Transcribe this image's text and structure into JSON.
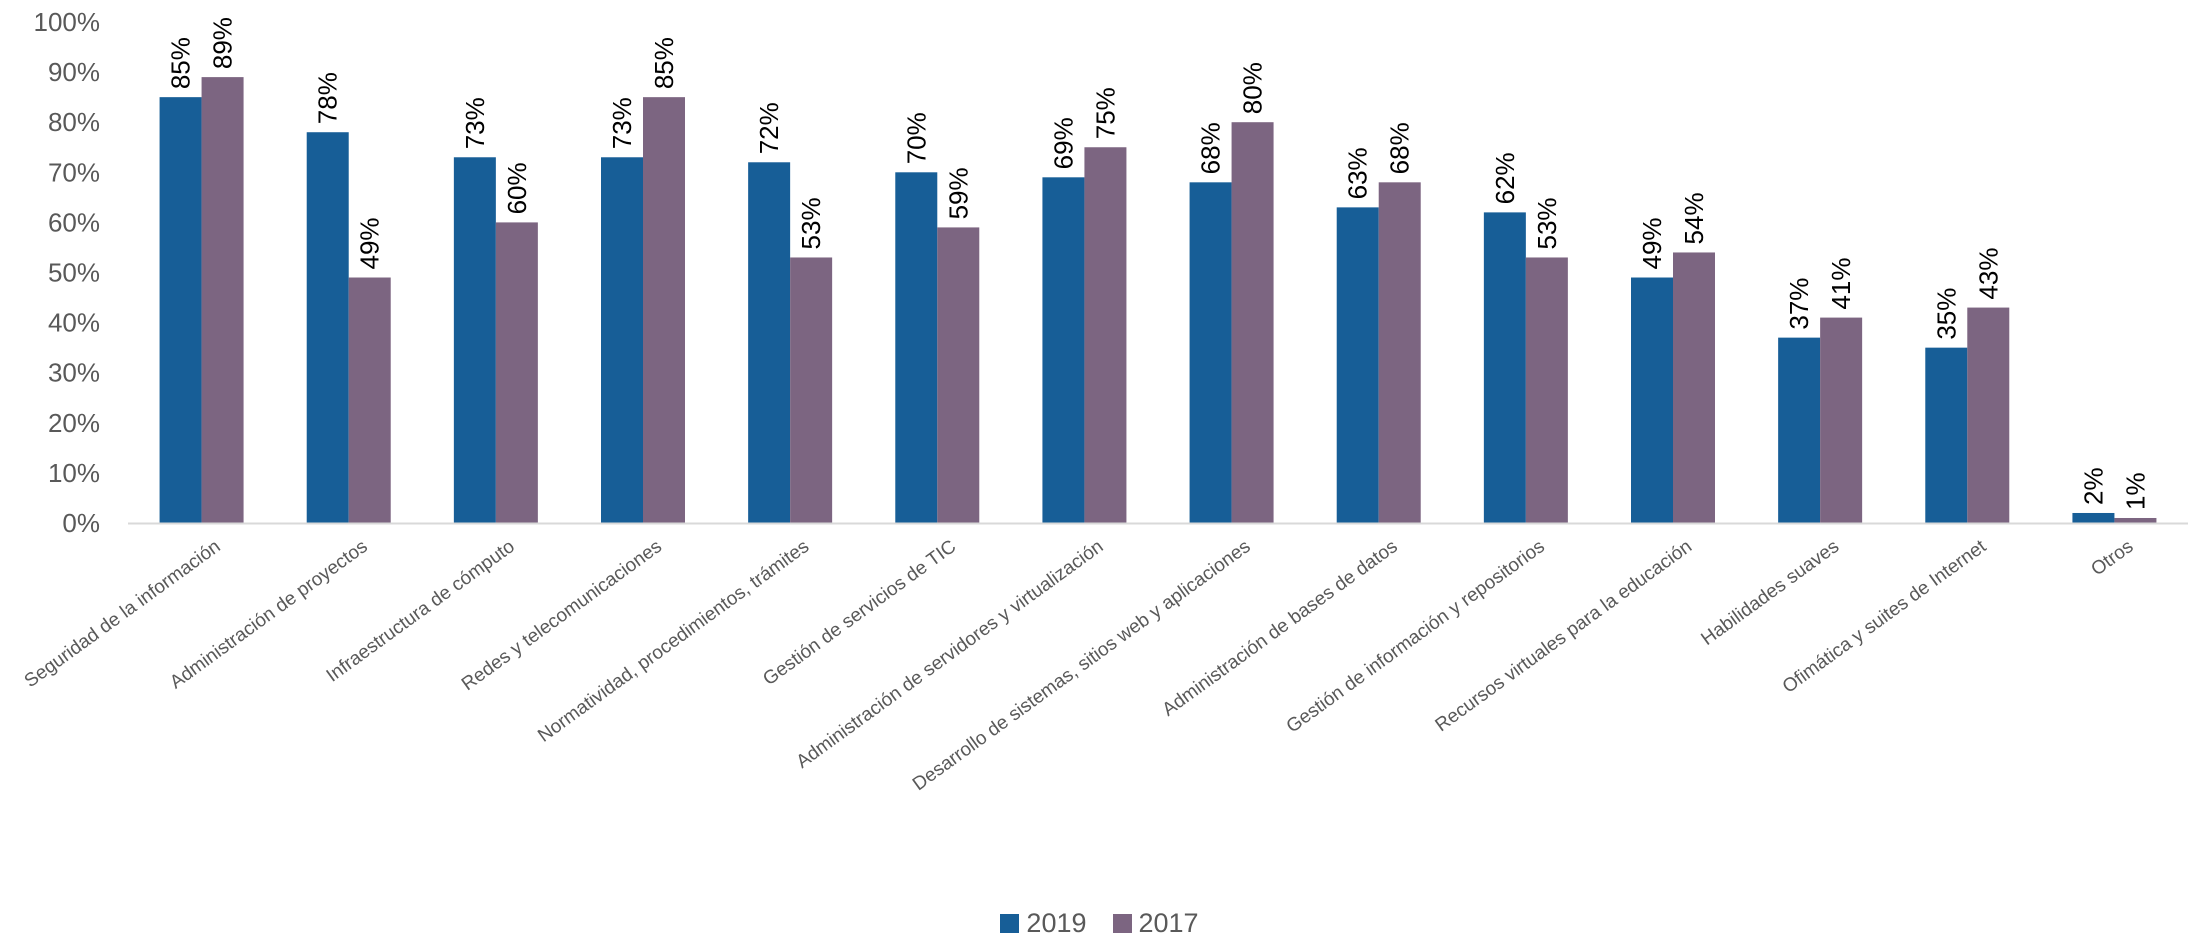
{
  "chart_data": {
    "type": "bar",
    "categories": [
      "Seguridad de la información",
      "Administración de proyectos",
      "Infraestructura de cómputo",
      "Redes y telecomunicaciones",
      "Normatividad, procedimientos, trámites",
      "Gestión de servicios de TIC",
      "Administración de servidores y virtualización",
      "Desarrollo de sistemas, sitios web y aplicaciones",
      "Administración de bases de datos",
      "Gestión de información y repositorios",
      "Recursos virtuales para la educación",
      "Habilidades suaves",
      "Ofimática y suites de Internet",
      "Otros"
    ],
    "series": [
      {
        "name": "2019",
        "color": "#175E97",
        "values": [
          85,
          78,
          73,
          73,
          72,
          70,
          69,
          68,
          63,
          62,
          49,
          37,
          35,
          2
        ]
      },
      {
        "name": "2017",
        "color": "#7C6581",
        "values": [
          89,
          49,
          60,
          85,
          53,
          59,
          75,
          80,
          68,
          53,
          54,
          41,
          43,
          1
        ]
      }
    ],
    "y_ticks": [
      "0%",
      "10%",
      "20%",
      "30%",
      "40%",
      "50%",
      "60%",
      "70%",
      "80%",
      "90%",
      "100%"
    ],
    "ylim": [
      0,
      100
    ],
    "value_suffix": "%",
    "legend_position": "bottom",
    "grid": false
  }
}
